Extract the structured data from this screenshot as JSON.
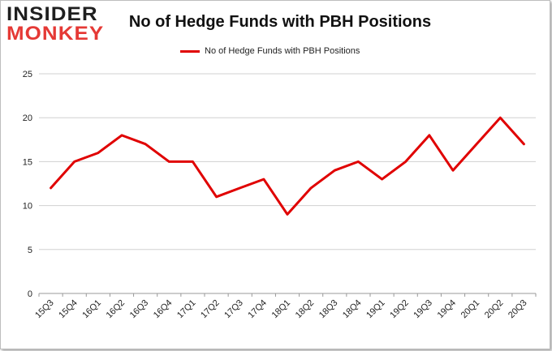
{
  "logo": {
    "line1": "INSIDER",
    "line2": "MONKEY"
  },
  "colors": {
    "line": "#e00000",
    "grid": "#d0d0d0",
    "logo_red": "#e53935"
  },
  "chart_data": {
    "type": "line",
    "title": "No of Hedge Funds with PBH Positions",
    "xlabel": "",
    "ylabel": "",
    "legend_position": "top-center",
    "grid": true,
    "ylim": [
      0,
      25
    ],
    "yticks": [
      0,
      5,
      10,
      15,
      20,
      25
    ],
    "categories": [
      "15Q3",
      "15Q4",
      "16Q1",
      "16Q2",
      "16Q3",
      "16Q4",
      "17Q1",
      "17Q2",
      "17Q3",
      "17Q4",
      "18Q1",
      "18Q2",
      "18Q3",
      "18Q4",
      "19Q1",
      "19Q2",
      "19Q3",
      "19Q4",
      "20Q1",
      "20Q2",
      "20Q3"
    ],
    "series": [
      {
        "name": "No of Hedge Funds with PBH Positions",
        "values": [
          12,
          15,
          16,
          18,
          17,
          15,
          15,
          11,
          12,
          13,
          9,
          12,
          14,
          15,
          13,
          15,
          18,
          14,
          17,
          20,
          17
        ]
      }
    ]
  }
}
